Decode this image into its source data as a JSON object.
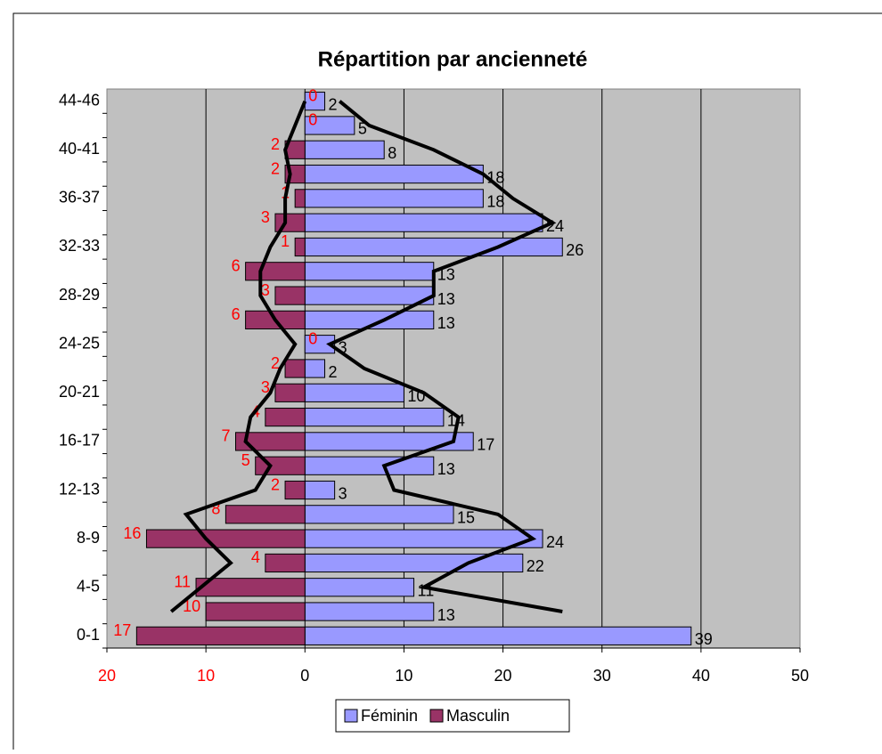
{
  "chart_data": {
    "type": "bar",
    "orientation": "horizontal",
    "title": "Répartition par ancienneté",
    "categories": [
      "0-1",
      null,
      "4-5",
      null,
      "8-9",
      null,
      "12-13",
      null,
      "16-17",
      null,
      "20-21",
      null,
      "24-25",
      null,
      "28-29",
      null,
      "32-33",
      null,
      "36-37",
      null,
      "40-41",
      null,
      "44-46"
    ],
    "series": [
      {
        "name": "Féminin",
        "color": "#9999ff",
        "label_color": "#000000",
        "values": [
          39,
          13,
          11,
          22,
          24,
          15,
          3,
          13,
          17,
          14,
          10,
          2,
          3,
          13,
          13,
          13,
          26,
          24,
          18,
          18,
          8,
          5,
          2
        ],
        "moving_average": [
          null,
          26,
          12,
          16.5,
          23,
          19.5,
          9,
          8,
          15,
          15.5,
          12,
          6,
          2.5,
          8,
          13,
          13,
          19.5,
          25,
          21,
          18,
          13,
          6.5,
          3.5
        ]
      },
      {
        "name": "Masculin",
        "color": "#993366",
        "label_color": "#ff0000",
        "values": [
          -17,
          -10,
          -11,
          -4,
          -16,
          -8,
          -2,
          -5,
          -7,
          -4,
          -3,
          -2,
          0,
          -6,
          -3,
          -6,
          -1,
          -3,
          -1,
          -2,
          -2,
          0,
          0
        ],
        "value_labels": [
          "17",
          "10",
          "11",
          "4",
          "16",
          "8",
          "2",
          "5",
          "7",
          "4",
          "3",
          "2",
          "0",
          "6",
          "3",
          "6",
          "1",
          "3",
          "1",
          "2",
          "2",
          "0",
          "0"
        ],
        "moving_average": [
          null,
          -13.5,
          -10.5,
          -7.5,
          -10,
          -12,
          -5,
          -3.5,
          -6,
          -5.5,
          -3.5,
          -2.5,
          -1,
          -3,
          -4.5,
          -4.5,
          -3.5,
          -2,
          -2,
          -1.5,
          -2,
          -1,
          0
        ]
      }
    ],
    "xlim": [
      -20,
      50
    ],
    "xticks": [
      {
        "value": -20,
        "label": "20"
      },
      {
        "value": -10,
        "label": "10"
      },
      0,
      10,
      20,
      30,
      40,
      50
    ],
    "grid": true,
    "legend": "bottom"
  }
}
